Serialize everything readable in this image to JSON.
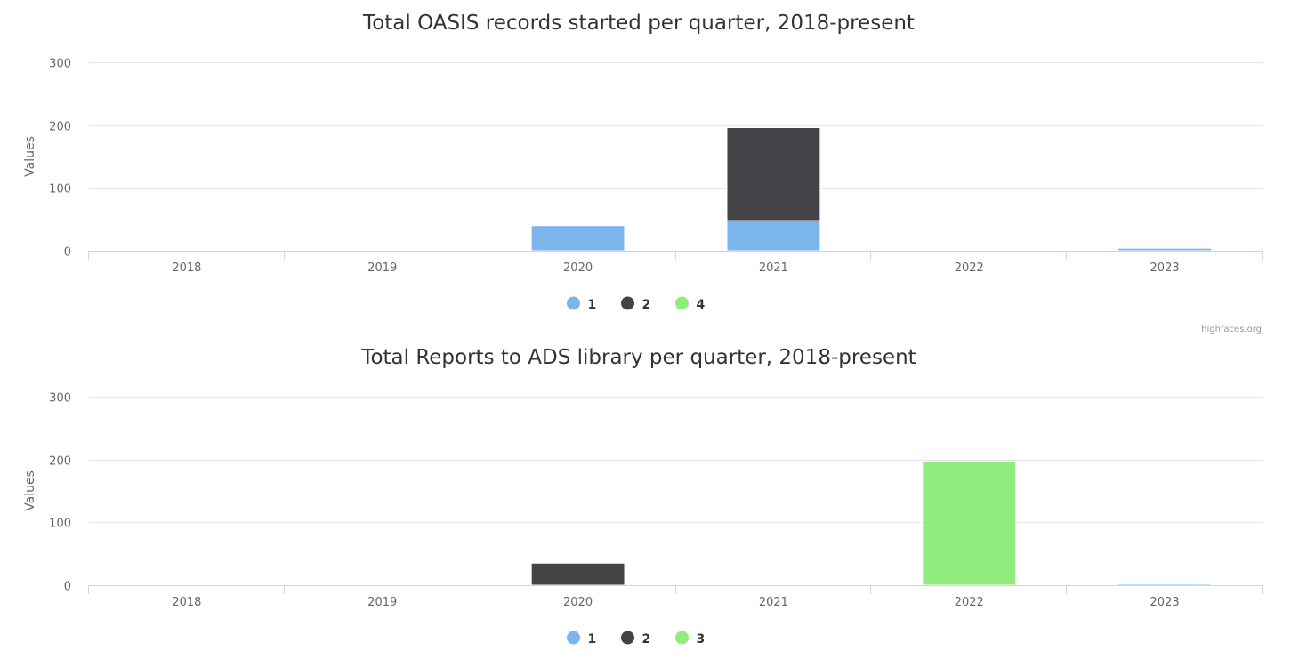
{
  "colors": {
    "1": "#7cb5ec",
    "2": "#434348",
    "3": "#90ed7d",
    "4": "#90ed7d"
  },
  "credits": "highfaces.org",
  "chart_data": [
    {
      "type": "bar",
      "stacked": true,
      "title": "Total OASIS records started per quarter, 2018-present",
      "ylabel": "Values",
      "ylim": [
        0,
        300
      ],
      "yticks": [
        0,
        100,
        200,
        300
      ],
      "categories": [
        "2018",
        "2019",
        "2020",
        "2021",
        "2022",
        "2023"
      ],
      "legend_position": "bottom-center",
      "series": [
        {
          "name": "1",
          "color": "#7cb5ec",
          "values": [
            0,
            0,
            40,
            48,
            0,
            4
          ]
        },
        {
          "name": "2",
          "color": "#434348",
          "values": [
            0,
            0,
            0,
            148,
            0,
            0
          ]
        },
        {
          "name": "4",
          "color": "#90ed7d",
          "values": [
            0,
            0,
            0,
            0,
            0,
            0
          ]
        }
      ]
    },
    {
      "type": "bar",
      "stacked": true,
      "title": "Total Reports to ADS library per quarter, 2018-present",
      "ylabel": "Values",
      "ylim": [
        0,
        300
      ],
      "yticks": [
        0,
        100,
        200,
        300
      ],
      "categories": [
        "2018",
        "2019",
        "2020",
        "2021",
        "2022",
        "2023"
      ],
      "legend_position": "bottom-center",
      "series": [
        {
          "name": "1",
          "color": "#7cb5ec",
          "values": [
            0,
            0,
            0,
            0,
            0,
            2
          ]
        },
        {
          "name": "2",
          "color": "#434348",
          "values": [
            0,
            0,
            35,
            0,
            0,
            0
          ]
        },
        {
          "name": "3",
          "color": "#90ed7d",
          "values": [
            0,
            0,
            0,
            0,
            197,
            0
          ]
        }
      ]
    }
  ]
}
